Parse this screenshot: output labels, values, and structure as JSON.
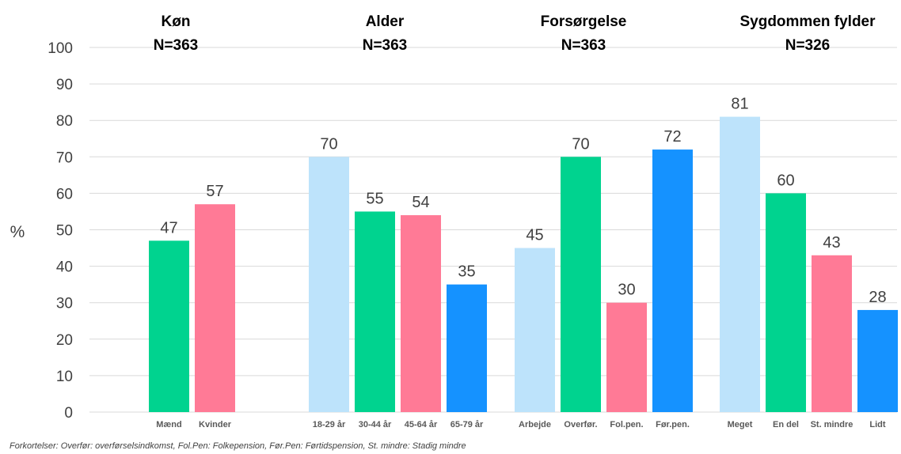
{
  "chart_data": {
    "type": "bar",
    "ylabel": "%",
    "ylim": [
      0,
      100
    ],
    "yticks": [
      0,
      10,
      20,
      30,
      40,
      50,
      60,
      70,
      80,
      90,
      100
    ],
    "grid": true,
    "groups": [
      {
        "title": "Køn",
        "n": "N=363",
        "bars": [
          {
            "label": "Mænd",
            "value": 47,
            "color": "#00d38f"
          },
          {
            "label": "Kvinder",
            "value": 57,
            "color": "#ff7a96"
          }
        ]
      },
      {
        "title": "Alder",
        "n": "N=363",
        "bars": [
          {
            "label": "18-29 år",
            "value": 70,
            "color": "#bde3fb"
          },
          {
            "label": "30-44 år",
            "value": 55,
            "color": "#00d38f"
          },
          {
            "label": "45-64 år",
            "value": 54,
            "color": "#ff7a96"
          },
          {
            "label": "65-79 år",
            "value": 35,
            "color": "#1592ff"
          }
        ]
      },
      {
        "title": "Forsørgelse",
        "n": "N=363",
        "bars": [
          {
            "label": "Arbejde",
            "value": 45,
            "color": "#bde3fb"
          },
          {
            "label": "Overfør.",
            "value": 70,
            "color": "#00d38f"
          },
          {
            "label": "Fol.pen.",
            "value": 30,
            "color": "#ff7a96"
          },
          {
            "label": "Før.pen.",
            "value": 72,
            "color": "#1592ff"
          }
        ]
      },
      {
        "title": "Sygdommen fylder",
        "n": "N=326",
        "bars": [
          {
            "label": "Meget",
            "value": 81,
            "color": "#bde3fb"
          },
          {
            "label": "En del",
            "value": 60,
            "color": "#00d38f"
          },
          {
            "label": "St. mindre",
            "value": 43,
            "color": "#ff7a96"
          },
          {
            "label": "Lidt",
            "value": 28,
            "color": "#1592ff"
          }
        ]
      }
    ]
  },
  "footnote": "Forkortelser: Overfør: overførselsindkomst, Fol.Pen: Folkepension, Før.Pen: Førtidspension, St. mindre: Stadig mindre"
}
